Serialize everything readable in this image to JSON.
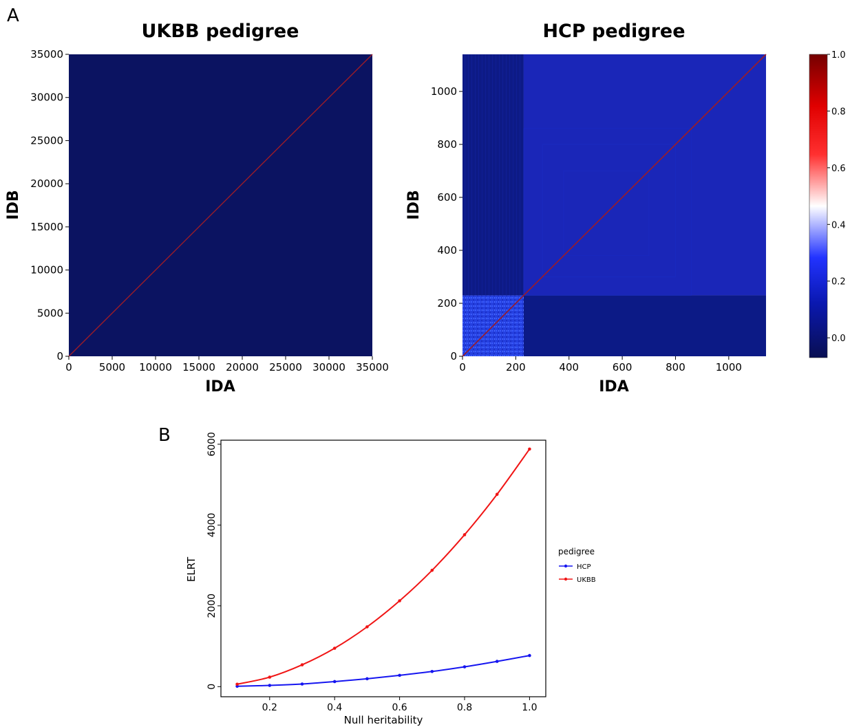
{
  "panel_labels": {
    "a": "A",
    "b": "B"
  },
  "chart_data": [
    {
      "type": "heatmap",
      "title": "UKBB pedigree",
      "xlabel": "IDA",
      "ylabel": "IDB",
      "xlim": [
        0,
        35000
      ],
      "ylim": [
        0,
        35000
      ],
      "xticks": [
        "0",
        "5000",
        "10000",
        "15000",
        "20000",
        "25000",
        "30000",
        "35000"
      ],
      "yticks": [
        "0",
        "5000",
        "10000",
        "15000",
        "20000",
        "25000",
        "30000",
        "35000"
      ],
      "background_value": 0.0,
      "diagonal_value": 1.0,
      "colors": {
        "background": "#0b1361",
        "diagonal": "#9c1c28"
      }
    },
    {
      "type": "heatmap",
      "title": "HCP pedigree",
      "xlabel": "IDA",
      "ylabel": "IDB",
      "xlim": [
        0,
        1140
      ],
      "ylim": [
        0,
        1140
      ],
      "xticks": [
        "0",
        "200",
        "400",
        "600",
        "800",
        "1000"
      ],
      "yticks": [
        "0",
        "200",
        "400",
        "600",
        "800",
        "1000"
      ],
      "blocks": [
        {
          "x": [
            0,
            230
          ],
          "y": [
            0,
            230
          ],
          "value": 0.15
        },
        {
          "x": [
            230,
            1140
          ],
          "y": [
            230,
            1140
          ],
          "value": 0.08
        },
        {
          "x": [
            0,
            230
          ],
          "y": [
            230,
            1140
          ],
          "value": 0.03
        },
        {
          "x": [
            230,
            1140
          ],
          "y": [
            0,
            230
          ],
          "value": 0.03
        }
      ],
      "diagonal_value": 1.0,
      "colorbar": {
        "ticks": [
          "0.0",
          "0.2",
          "0.4",
          "0.6",
          "0.8",
          "1.0"
        ],
        "min": -0.07,
        "max": 1.0
      },
      "colors": {
        "low": "#0a1664",
        "mid": "#ffffff",
        "high": "#7a0000",
        "block_light": "#2a45e8",
        "block_mid": "#1a26b8",
        "block_dark": "#0c1a86"
      }
    },
    {
      "type": "line",
      "xlabel": "Null heritability",
      "ylabel": "ELRT",
      "xlim": [
        0.05,
        1.05
      ],
      "ylim": [
        -250,
        6100
      ],
      "xticks": [
        "0.2",
        "0.4",
        "0.6",
        "0.8",
        "1.0"
      ],
      "yticks": [
        "0",
        "2000",
        "4000",
        "6000"
      ],
      "x": [
        0.1,
        0.2,
        0.3,
        0.4,
        0.5,
        0.6,
        0.7,
        0.8,
        0.9,
        1.0
      ],
      "series": [
        {
          "name": "HCP",
          "color": "#1515f0",
          "values": [
            10,
            30,
            65,
            125,
            195,
            280,
            375,
            490,
            625,
            770
          ]
        },
        {
          "name": "UKBB",
          "color": "#f01515",
          "values": [
            60,
            235,
            540,
            950,
            1480,
            2125,
            2880,
            3760,
            4760,
            5880
          ]
        }
      ],
      "legend": {
        "title": "pedigree",
        "position": "right"
      }
    }
  ]
}
